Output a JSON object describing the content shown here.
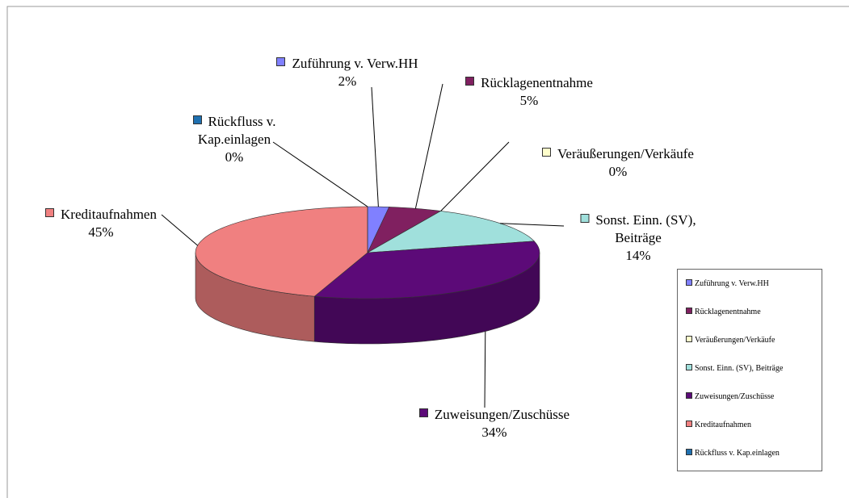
{
  "chart_data": {
    "type": "pie3d",
    "categories": [
      "Zuführung v. Verw.HH",
      "Rücklagenentnahme",
      "Veräußerungen/Verkäufe",
      "Sonst. Einn. (SV), Beiträge",
      "Zuweisungen/Zuschüsse",
      "Kreditaufnahmen",
      "Rückfluss v. Kap.einlagen"
    ],
    "values": [
      2,
      5,
      0,
      14,
      34,
      45,
      0
    ],
    "value_labels": [
      "2%",
      "5%",
      "0%",
      "14%",
      "34%",
      "45%",
      "0%"
    ],
    "colors": [
      "#8080ff",
      "#802060",
      "#ffffcc",
      "#a0e0dc",
      "#5c0a78",
      "#f08080",
      "#1f70b0"
    ],
    "legend": "right"
  }
}
